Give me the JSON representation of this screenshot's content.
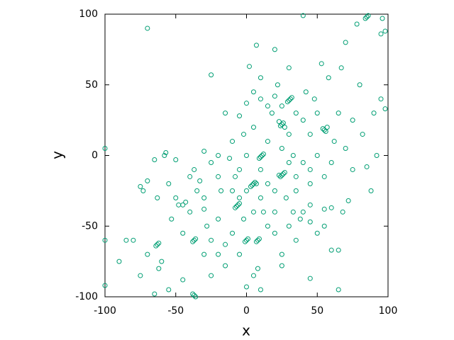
{
  "chart_data": {
    "type": "scatter",
    "x_label": "x",
    "y_label": "y",
    "color": "#009e73",
    "xlim": [
      -100,
      100
    ],
    "ylim": [
      -100,
      100
    ],
    "xticks": [
      -100,
      -50,
      0,
      50,
      100
    ],
    "yticks": [
      -100,
      -50,
      0,
      50,
      100
    ],
    "x": [
      -70,
      -100,
      -100,
      -100,
      -90,
      -85,
      -80,
      -75,
      -73,
      -70,
      -65,
      -63,
      -58,
      -57,
      -55,
      -50,
      -53,
      -48,
      -45,
      -43,
      -40,
      -37,
      -35,
      -33,
      -30,
      -30,
      -25,
      -25,
      -20,
      -18,
      -15,
      -12,
      -10,
      -8,
      -5,
      -2,
      0,
      2,
      5,
      7,
      10,
      12,
      15,
      18,
      20,
      22,
      25,
      28,
      30,
      33,
      35,
      38,
      40,
      42,
      45,
      48,
      50,
      53,
      55,
      58,
      60,
      62,
      65,
      67,
      70,
      72,
      75,
      78,
      80,
      82,
      85,
      88,
      90,
      92,
      95,
      98,
      98,
      95,
      96,
      60,
      65,
      45,
      -65,
      -55,
      -62,
      -70,
      -75,
      -60,
      -45,
      -25,
      -15,
      -5,
      5,
      8,
      0,
      10,
      25,
      25,
      40,
      60,
      -25,
      -20,
      -10,
      -15,
      15,
      20,
      30,
      35,
      45,
      -30,
      -20,
      5,
      10,
      20,
      35,
      40,
      50,
      70,
      75,
      65,
      45,
      40,
      15,
      20,
      0,
      -5,
      -2,
      5,
      30,
      35,
      15,
      45,
      55,
      30,
      50,
      -10,
      -30,
      -40,
      -45,
      -50,
      -20,
      10,
      45,
      25,
      10,
      55,
      68,
      -28,
      -5,
      0,
      20,
      33,
      30,
      31,
      29,
      32,
      25,
      24,
      26,
      27,
      23,
      55,
      54,
      56,
      57,
      10,
      11,
      9,
      12,
      5,
      4,
      6,
      3,
      7,
      -7,
      -6,
      -8,
      -5,
      25,
      24,
      26,
      23,
      27,
      0,
      1,
      -1,
      8,
      9,
      7,
      -37,
      -36,
      -38,
      -63,
      -62,
      -64,
      -37,
      -38,
      -36,
      85,
      86,
      84
    ],
    "values": [
      90,
      5,
      -60,
      -92,
      -75,
      -60,
      -60,
      -22,
      -25,
      -18,
      -3,
      -30,
      0,
      2,
      -20,
      -3,
      -45,
      -35,
      -35,
      -33,
      -40,
      -10,
      -25,
      -18,
      -38,
      3,
      57,
      -5,
      -15,
      -25,
      30,
      -2,
      10,
      -15,
      -30,
      -45,
      0,
      63,
      45,
      78,
      55,
      -40,
      10,
      30,
      75,
      50,
      5,
      -30,
      62,
      -40,
      30,
      -45,
      99,
      45,
      -20,
      40,
      -55,
      65,
      -38,
      55,
      -5,
      10,
      -95,
      62,
      80,
      -32,
      -10,
      93,
      50,
      15,
      -8,
      -25,
      30,
      0,
      40,
      33,
      88,
      86,
      97,
      -67,
      -67,
      -87,
      -98,
      -95,
      -80,
      -70,
      -85,
      -75,
      -88,
      -85,
      -78,
      -70,
      -85,
      -80,
      -93,
      -95,
      -78,
      -70,
      -40,
      -37,
      -60,
      -45,
      -55,
      -63,
      -50,
      -55,
      -50,
      -60,
      -47,
      -70,
      -70,
      -40,
      -30,
      -25,
      -25,
      -5,
      0,
      5,
      25,
      30,
      15,
      25,
      35,
      42,
      37,
      28,
      15,
      20,
      -5,
      -15,
      -20,
      -35,
      -15,
      15,
      30,
      -25,
      -30,
      -15,
      -55,
      -30,
      0,
      -10,
      -10,
      35,
      40,
      -50,
      -40,
      -50,
      -10,
      -25,
      -40,
      0,
      39,
      40,
      38,
      41,
      22,
      21,
      23,
      20,
      24,
      18,
      19,
      17,
      20,
      -1,
      0,
      -2,
      1,
      -20,
      -21,
      -19,
      -22,
      -20,
      -36,
      -35,
      -37,
      -34,
      -14,
      -15,
      -13,
      -14,
      -12,
      -60,
      -59,
      -61,
      -60,
      -59,
      -61,
      -60,
      -59,
      -61,
      -63,
      -62,
      -64,
      -99,
      -98,
      -100,
      98,
      99,
      97
    ]
  }
}
